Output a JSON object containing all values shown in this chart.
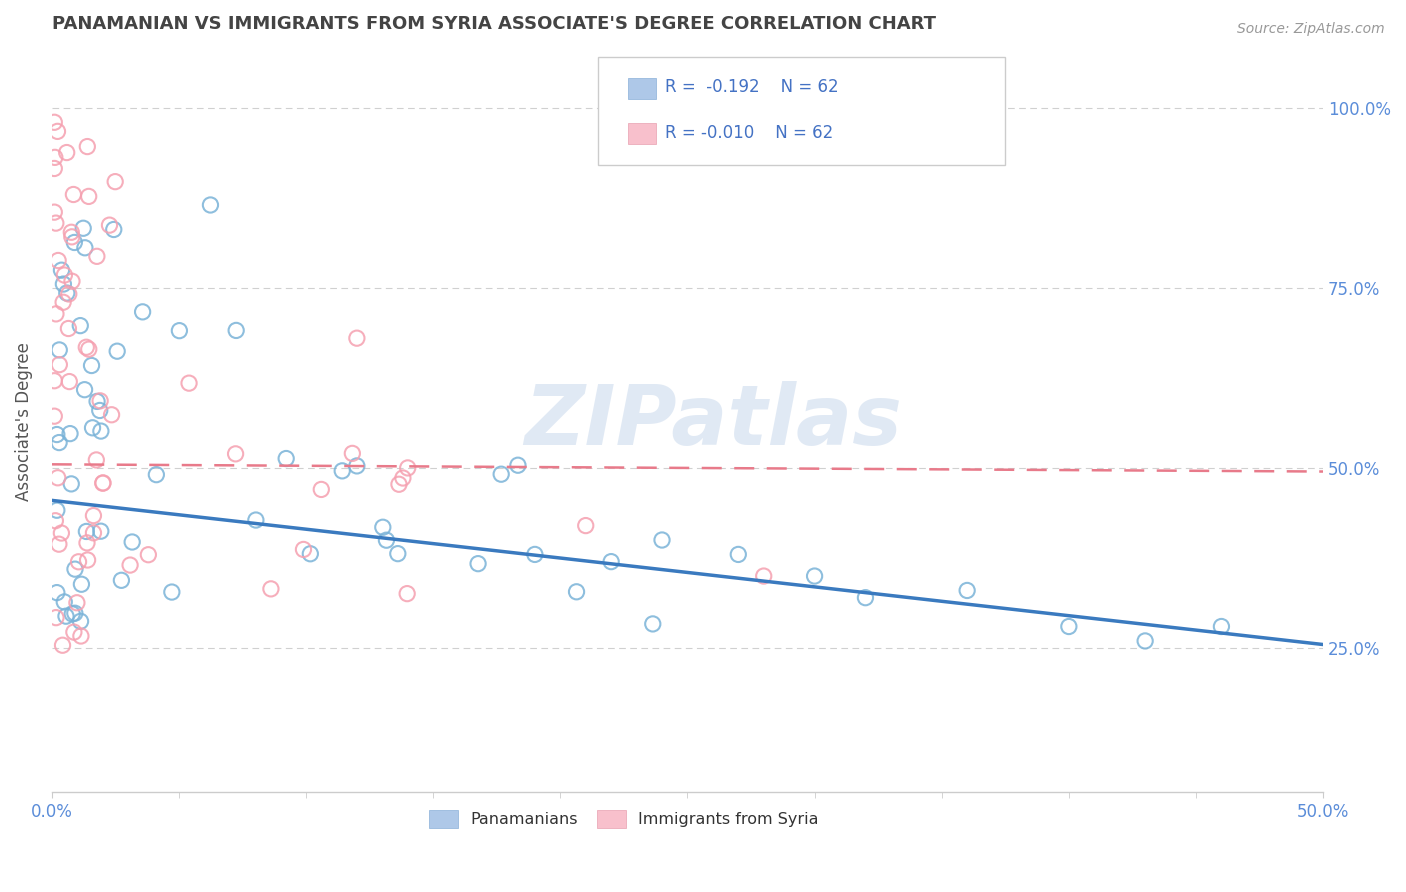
{
  "title": "PANAMANIAN VS IMMIGRANTS FROM SYRIA ASSOCIATE'S DEGREE CORRELATION CHART",
  "source_text": "Source: ZipAtlas.com",
  "ylabel_label": "Associate's Degree",
  "xlim": [
    0.0,
    0.5
  ],
  "ylim": [
    0.05,
    1.08
  ],
  "legend_r_blue": "R =  -0.192",
  "legend_n_blue": "N = 62",
  "legend_r_pink": "R = -0.010",
  "legend_n_pink": "N = 62",
  "blue_dot_color": "#7ab3d8",
  "pink_dot_color": "#f5a0b0",
  "line_blue": "#3a7abf",
  "line_pink": "#e87a8a",
  "watermark": "ZIPatlas",
  "background_color": "#ffffff",
  "grid_color": "#d0d0d0",
  "title_color": "#444444",
  "tick_label_color": "#5b8dd9",
  "blue_line_y0": 0.455,
  "blue_line_y1": 0.255,
  "pink_line_y0": 0.505,
  "pink_line_y1": 0.495
}
